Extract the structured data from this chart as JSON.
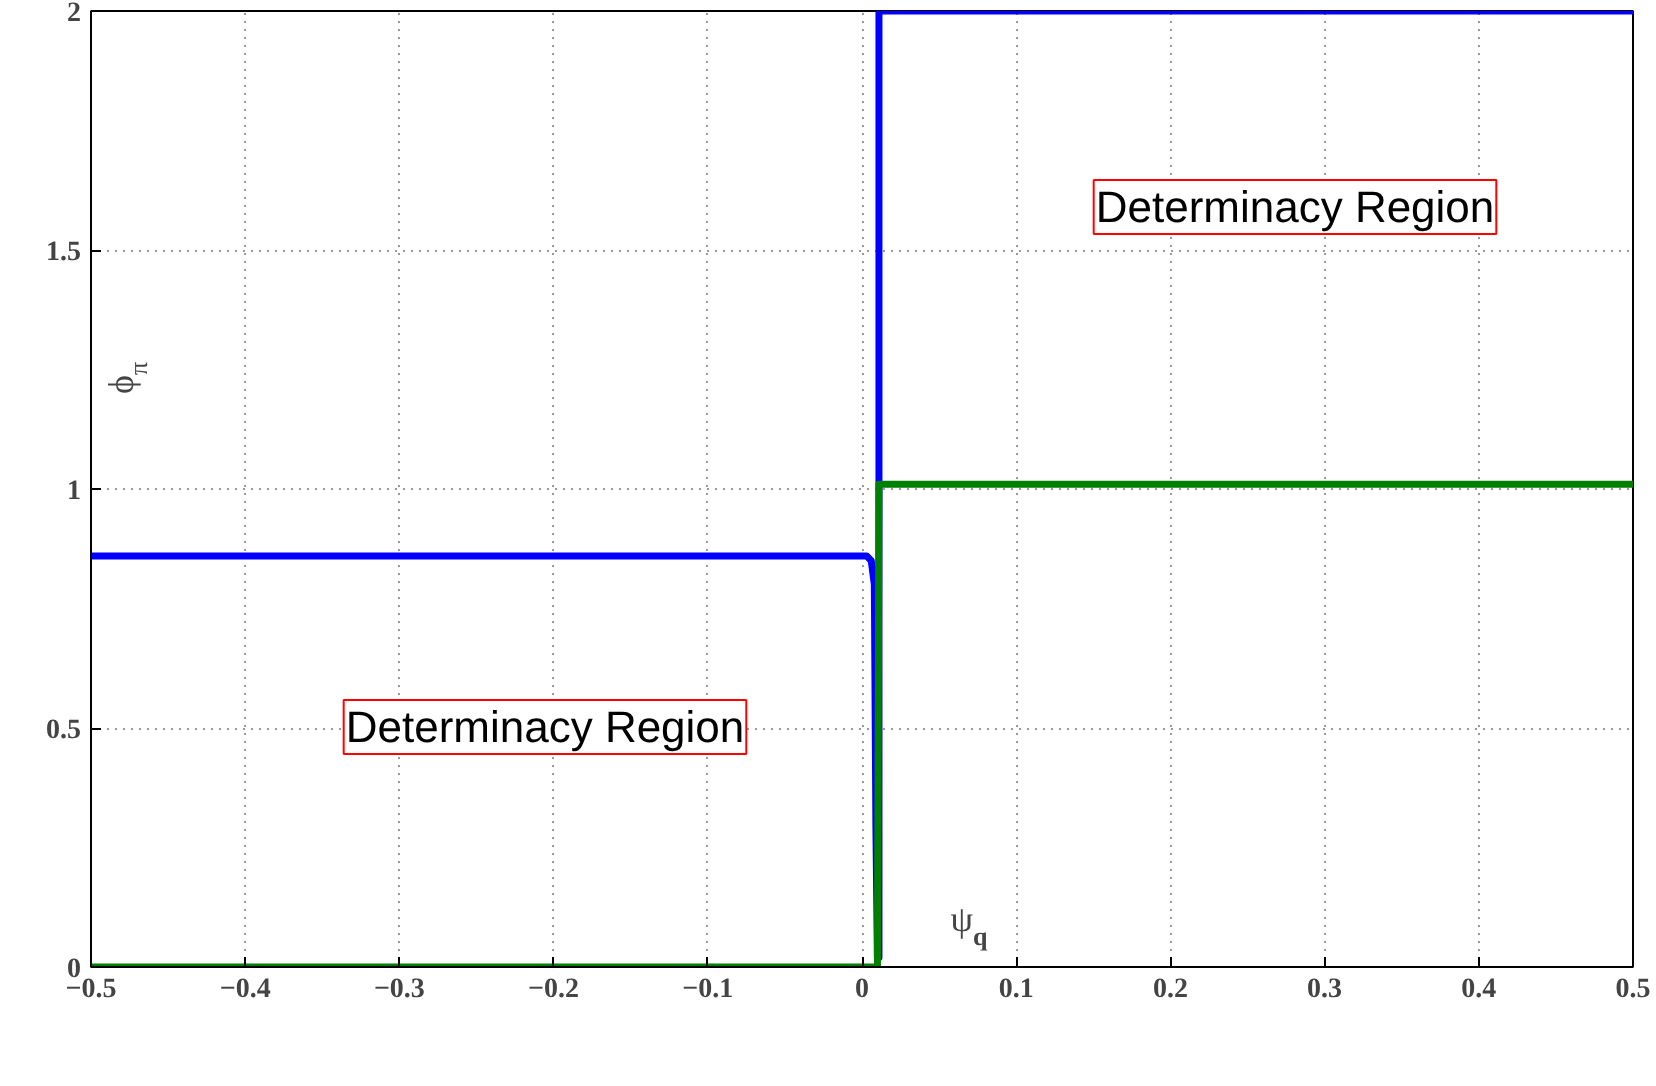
{
  "chart_data": {
    "type": "line",
    "xlabel": "ψ$_{q}$",
    "ylabel": "ϕ$_{π}$",
    "xlim": [
      -0.5,
      0.5
    ],
    "ylim": [
      0,
      2
    ],
    "xticks": [
      {
        "value": -0.5,
        "label": "−0.5"
      },
      {
        "value": -0.4,
        "label": "−0.4"
      },
      {
        "value": -0.3,
        "label": "−0.3"
      },
      {
        "value": -0.2,
        "label": "−0.2"
      },
      {
        "value": -0.1,
        "label": "−0.1"
      },
      0,
      0.1,
      0.2,
      0.3,
      0.4,
      0.5
    ],
    "yticks": [
      0,
      0.5,
      1,
      1.5,
      2
    ],
    "grid": true,
    "line_style": "solid",
    "series": [
      {
        "color": "#0000ff",
        "x": [
          -0.5,
          0.003,
          0.006,
          0.008,
          0.009,
          0.01,
          0.011,
          0.011,
          0.5
        ],
        "values": [
          0.86,
          0.86,
          0.85,
          0.8,
          0.3,
          0.02,
          0.02,
          2,
          2
        ]
      },
      {
        "color": "#008000",
        "x": [
          -0.5,
          0.01,
          0.011,
          0.5
        ],
        "values": [
          0,
          0,
          1.01,
          1.01
        ]
      }
    ],
    "annotations": [
      "Determinacy Region",
      "Determinacy Region"
    ]
  }
}
